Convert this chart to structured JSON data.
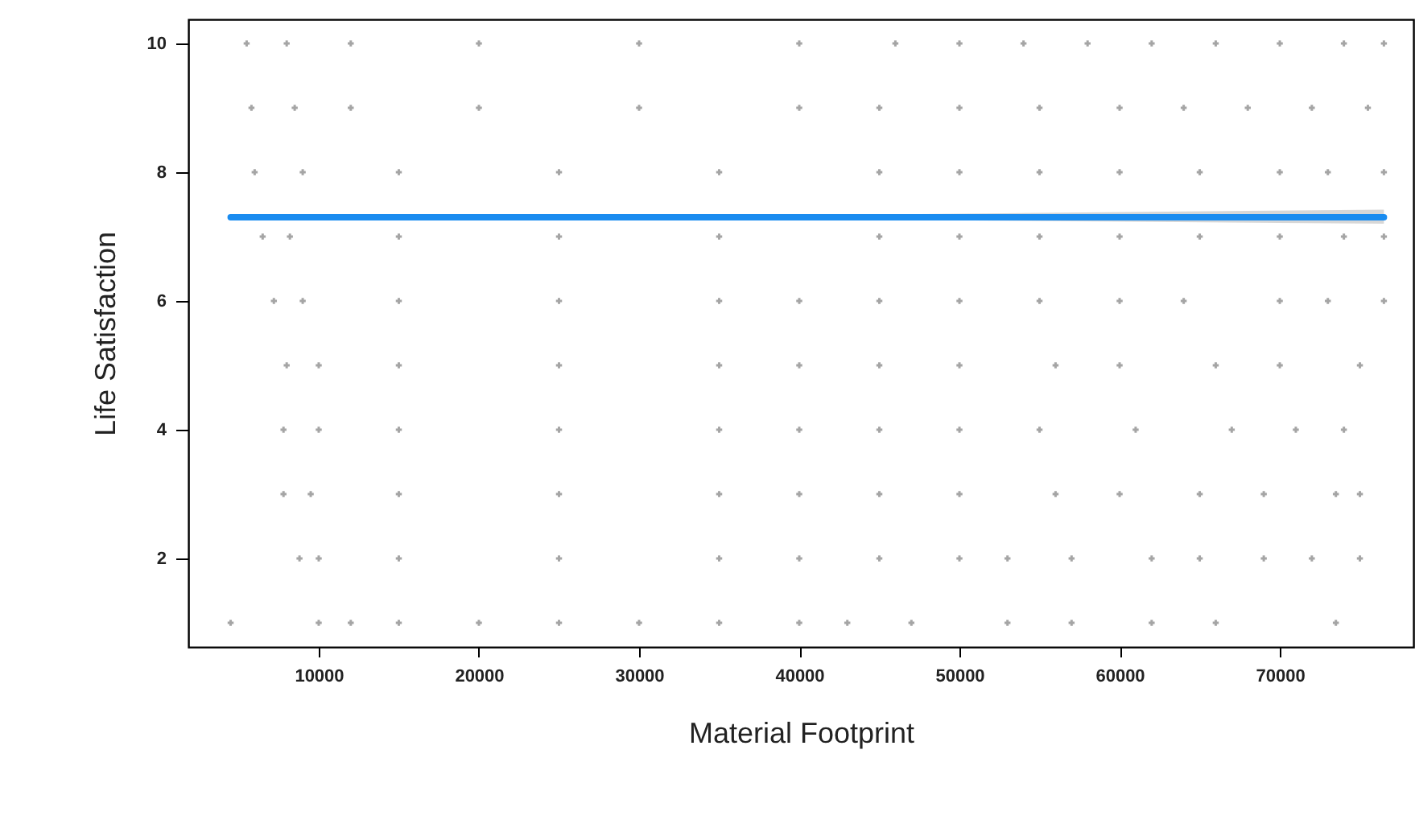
{
  "chart_data": {
    "type": "scatter",
    "xlabel": "Material Footprint",
    "ylabel": "Life Satisfaction",
    "xlim": [
      1860,
      78340
    ],
    "ylim": [
      0.625,
      10.375
    ],
    "xticks": [
      10000,
      20000,
      30000,
      40000,
      50000,
      60000,
      70000
    ],
    "yticks": [
      2,
      4,
      6,
      8,
      10
    ],
    "grid": false,
    "marker": "cross",
    "series": [
      {
        "color": "#7f7f7f",
        "x": [
          5500,
          8000,
          12000,
          20000,
          30000,
          40000,
          46000,
          50000,
          54000,
          58000,
          62000,
          66000,
          70000,
          74000,
          76500,
          5800,
          8500,
          12000,
          20000,
          30000,
          40000,
          45000,
          50000,
          55000,
          60000,
          64000,
          68000,
          72000,
          75500,
          6000,
          9000,
          15000,
          25000,
          35000,
          45000,
          50000,
          55000,
          60000,
          65000,
          70000,
          73000,
          76500,
          6500,
          8200,
          15000,
          25000,
          35000,
          45000,
          50000,
          55000,
          60000,
          65000,
          70000,
          74000,
          76500,
          7200,
          9000,
          15000,
          25000,
          35000,
          40000,
          45000,
          50000,
          55000,
          60000,
          64000,
          70000,
          73000,
          76500,
          8000,
          10000,
          15000,
          25000,
          35000,
          40000,
          45000,
          50000,
          56000,
          60000,
          66000,
          70000,
          75000,
          7800,
          10000,
          15000,
          25000,
          35000,
          40000,
          45000,
          50000,
          55000,
          61000,
          67000,
          71000,
          74000,
          7800,
          9500,
          15000,
          25000,
          35000,
          40000,
          45000,
          50000,
          56000,
          60000,
          65000,
          69000,
          73500,
          75000,
          8800,
          10000,
          15000,
          25000,
          35000,
          40000,
          45000,
          50000,
          53000,
          57000,
          62000,
          65000,
          69000,
          72000,
          75000,
          4500,
          10000,
          12000,
          15000,
          20000,
          25000,
          30000,
          35000,
          40000,
          43000,
          47000,
          53000,
          57000,
          62000,
          66000,
          73500
        ],
        "values": [
          10,
          10,
          10,
          10,
          10,
          10,
          10,
          10,
          10,
          10,
          10,
          10,
          10,
          10,
          10,
          9,
          9,
          9,
          9,
          9,
          9,
          9,
          9,
          9,
          9,
          9,
          9,
          9,
          9,
          8,
          8,
          8,
          8,
          8,
          8,
          8,
          8,
          8,
          8,
          8,
          8,
          8,
          7,
          7,
          7,
          7,
          7,
          7,
          7,
          7,
          7,
          7,
          7,
          7,
          7,
          6,
          6,
          6,
          6,
          6,
          6,
          6,
          6,
          6,
          6,
          6,
          6,
          6,
          6,
          5,
          5,
          5,
          5,
          5,
          5,
          5,
          5,
          5,
          5,
          5,
          5,
          5,
          4,
          4,
          4,
          4,
          4,
          4,
          4,
          4,
          4,
          4,
          4,
          4,
          4,
          3,
          3,
          3,
          3,
          3,
          3,
          3,
          3,
          3,
          3,
          3,
          3,
          3,
          3,
          2,
          2,
          2,
          2,
          2,
          2,
          2,
          2,
          2,
          2,
          2,
          2,
          2,
          2,
          2,
          1,
          1,
          1,
          1,
          1,
          1,
          1,
          1,
          1,
          1,
          1,
          1,
          1,
          1,
          1,
          1
        ]
      },
      {
        "type": "line",
        "marker": "none",
        "color": "#1a8cf0",
        "x": [
          4500,
          40000,
          76500
        ],
        "values": [
          7.3,
          7.3,
          7.3
        ],
        "lower": [
          7.26,
          7.27,
          7.2
        ],
        "upper": [
          7.34,
          7.33,
          7.42
        ]
      }
    ]
  }
}
